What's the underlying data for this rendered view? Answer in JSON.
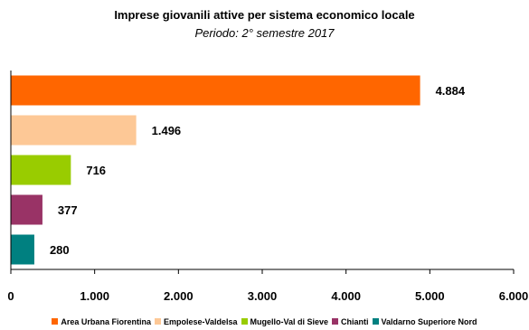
{
  "chart_data": {
    "type": "bar",
    "orientation": "horizontal",
    "title": "Imprese giovanili attive per sistema economico locale",
    "subtitle": "Periodo: 2° semestre 2017",
    "categories": [
      "Area Urbana Fiorentina",
      "Empolese-Valdelsa",
      "Mugello-Val di Sieve",
      "Chianti",
      "Valdarno Superiore Nord"
    ],
    "values": [
      4884,
      1496,
      716,
      377,
      280
    ],
    "data_labels": [
      "4.884",
      "1.496",
      "716",
      "377",
      "280"
    ],
    "colors": [
      "#ff6600",
      "#fdc896",
      "#99cc00",
      "#993366",
      "#008080"
    ],
    "xlim": [
      0,
      6000
    ],
    "xticks": [
      0,
      1000,
      2000,
      3000,
      4000,
      5000,
      6000
    ],
    "xtick_labels": [
      "0",
      "1.000",
      "2.000",
      "3.000",
      "4.000",
      "5.000",
      "6.000"
    ],
    "grid": false,
    "legend_position": "bottom"
  }
}
